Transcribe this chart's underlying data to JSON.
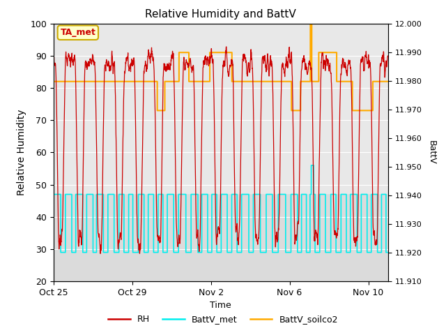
{
  "title": "Relative Humidity and BattV",
  "ylabel_left": "Relative Humidity",
  "ylabel_right": "BattV",
  "xlabel": "Time",
  "ylim_left": [
    20,
    100
  ],
  "ylim_right": [
    11.91,
    12.0
  ],
  "yticks_left": [
    20,
    30,
    40,
    50,
    60,
    70,
    80,
    90,
    100
  ],
  "yticks_right": [
    11.91,
    11.92,
    11.93,
    11.94,
    11.95,
    11.96,
    11.97,
    11.98,
    11.99,
    12.0
  ],
  "xtick_labels": [
    "Oct 25",
    "Oct 29",
    "Nov 2",
    "Nov 6",
    "Nov 10"
  ],
  "xtick_positions": [
    0,
    4,
    8,
    12,
    16
  ],
  "annotation_text": "TA_met",
  "annotation_color_bg": "#ffffcc",
  "annotation_color_border": "#ccaa00",
  "annotation_color_text": "#cc0000",
  "color_RH": "#cc0000",
  "color_BattV_met": "#00eeee",
  "color_BattV_soilco2": "#ffaa00",
  "bg_color": "#e8e8e8",
  "bg_color_inner": "#d8d8d8",
  "legend_labels": [
    "RH",
    "BattV_met",
    "BattV_soilco2"
  ],
  "rh_high": 90,
  "rh_low": 29,
  "battv_met_high_rh": 47,
  "battv_met_low_rh": 29,
  "battv_soilco2_base_rh": 82,
  "battv_soilco2_low_rh": 73,
  "battv_soilco2_high_rh": 91
}
